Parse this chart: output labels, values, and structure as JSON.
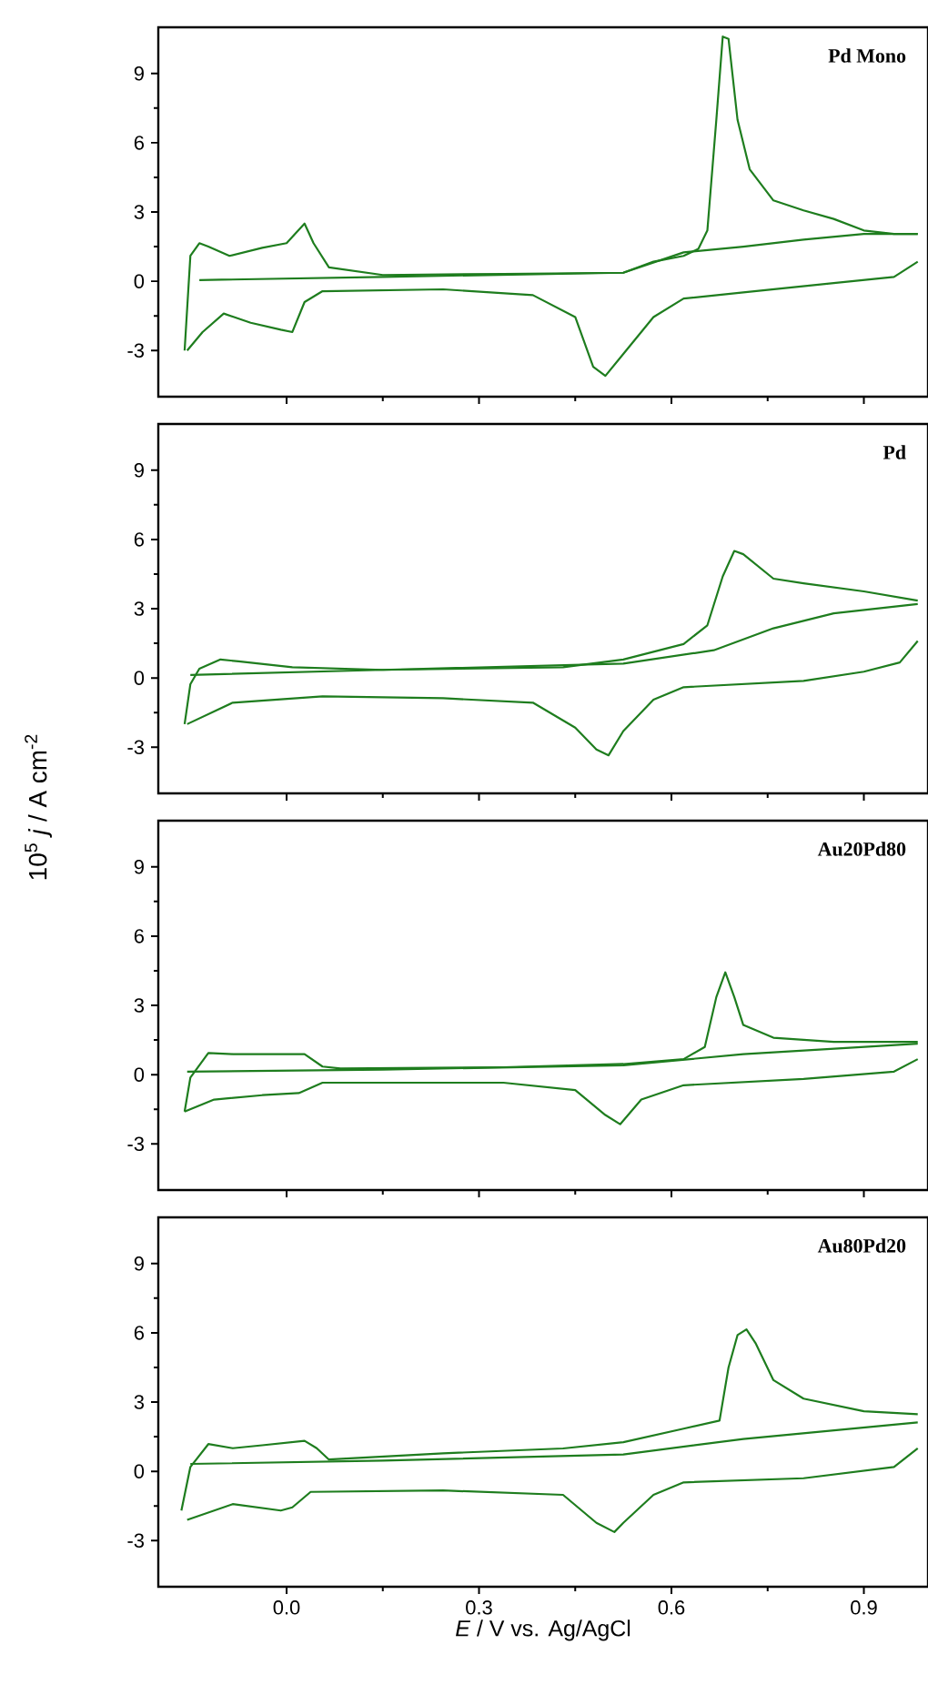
{
  "chart_data": [
    {
      "type": "line",
      "title": "Pd Mono",
      "xlim": [
        -0.2,
        1.0
      ],
      "ylim": [
        -5,
        11
      ],
      "xticks": [
        {
          "value": 0,
          "label": null
        },
        {
          "value": 0.3,
          "label": null
        },
        {
          "value": 0.6,
          "label": null
        },
        {
          "value": 0.9,
          "label": null
        }
      ],
      "yticks": [
        -3,
        0,
        3,
        6,
        9
      ],
      "tick_labels": "y",
      "series": [
        {
          "color": "#1e7d1e",
          "x": [
            -0.159,
            -0.15,
            -0.136,
            -0.122,
            -0.089,
            -0.038,
            0,
            0.028,
            0.042,
            0.066,
            0.15,
            0.338,
            0.525,
            0.572,
            0.619,
            0.642,
            0.656,
            0.67,
            0.68,
            0.689,
            0.703,
            0.722,
            0.759,
            0.806,
            0.853,
            0.9,
            0.947,
            0.984
          ],
          "values": [
            -3.0,
            1.1,
            1.65,
            1.5,
            1.1,
            1.45,
            1.65,
            2.5,
            1.65,
            0.6,
            0.27,
            0.32,
            0.37,
            0.85,
            1.1,
            1.4,
            2.2,
            7.0,
            10.6,
            10.5,
            7.0,
            4.85,
            3.5,
            3.07,
            2.7,
            2.2,
            2.05,
            2.05
          ]
        },
        {
          "color": "#1e7d1e",
          "x": [
            -0.136,
            0.15,
            0.525,
            0.619,
            0.712,
            0.806,
            0.9,
            0.984
          ],
          "values": [
            0.05,
            0.19,
            0.37,
            1.25,
            1.5,
            1.8,
            2.05,
            2.05
          ]
        },
        {
          "color": "#1e7d1e",
          "x": [
            0.984,
            0.947,
            0.853,
            0.712,
            0.619,
            0.572,
            0.525,
            0.497,
            0.478,
            0.45,
            0.384,
            0.244,
            0.056,
            0.028,
            0.009,
            -0.009,
            -0.056,
            -0.098,
            -0.131,
            -0.155
          ],
          "values": [
            0.85,
            0.19,
            -0.08,
            -0.48,
            -0.75,
            -1.55,
            -3.15,
            -4.1,
            -3.7,
            -1.55,
            -0.6,
            -0.35,
            -0.43,
            -0.9,
            -2.2,
            -2.1,
            -1.8,
            -1.4,
            -2.2,
            -3.0
          ]
        }
      ]
    },
    {
      "type": "line",
      "title": "Pd",
      "ylabel": "10$^{5}$ *j* / A cm$^{-2}$",
      "xlim": [
        -0.2,
        1.0
      ],
      "ylim": [
        -5,
        11
      ],
      "xticks": [
        {
          "value": 0,
          "label": null
        },
        {
          "value": 0.3,
          "label": null
        },
        {
          "value": 0.6,
          "label": null
        },
        {
          "value": 0.9,
          "label": null
        }
      ],
      "yticks": [
        -3,
        0,
        3,
        6,
        9
      ],
      "tick_labels": "y",
      "series": [
        {
          "color": "#1e7d1e",
          "x": [
            -0.159,
            -0.15,
            -0.136,
            -0.103,
            -0.075,
            0.009,
            0.15,
            0.431,
            0.525,
            0.619,
            0.656,
            0.68,
            0.698,
            0.712,
            0.759,
            0.806,
            0.9,
            0.984
          ],
          "values": [
            -2.0,
            -0.27,
            0.4,
            0.8,
            0.72,
            0.46,
            0.35,
            0.46,
            0.8,
            1.47,
            2.28,
            4.4,
            5.5,
            5.36,
            4.3,
            4.1,
            3.75,
            3.35
          ]
        },
        {
          "color": "#1e7d1e",
          "x": [
            -0.15,
            0.15,
            0.525,
            0.666,
            0.759,
            0.853,
            0.984
          ],
          "values": [
            0.13,
            0.35,
            0.62,
            1.2,
            2.15,
            2.8,
            3.2
          ]
        },
        {
          "color": "#1e7d1e",
          "x": [
            0.984,
            0.956,
            0.9,
            0.806,
            0.619,
            0.572,
            0.525,
            0.502,
            0.483,
            0.45,
            0.384,
            0.244,
            0.056,
            -0.084,
            -0.155
          ],
          "values": [
            1.6,
            0.67,
            0.27,
            -0.13,
            -0.4,
            -0.94,
            -2.3,
            -3.35,
            -3.1,
            -2.15,
            -1.07,
            -0.88,
            -0.8,
            -1.07,
            -2.0
          ]
        }
      ]
    },
    {
      "type": "line",
      "title": "Au20Pd80",
      "xlim": [
        -0.2,
        1.0
      ],
      "ylim": [
        -5,
        11
      ],
      "xticks": [
        {
          "value": 0,
          "label": null
        },
        {
          "value": 0.3,
          "label": null
        },
        {
          "value": 0.6,
          "label": null
        },
        {
          "value": 0.9,
          "label": null
        }
      ],
      "yticks": [
        -3,
        0,
        3,
        6,
        9
      ],
      "tick_labels": "y",
      "series": [
        {
          "color": "#1e7d1e",
          "x": [
            -0.159,
            -0.15,
            -0.122,
            -0.084,
            0.028,
            0.056,
            0.084,
            0.338,
            0.525,
            0.619,
            0.652,
            0.67,
            0.684,
            0.698,
            0.712,
            0.759,
            0.853,
            0.984
          ],
          "values": [
            -1.6,
            -0.13,
            0.94,
            0.89,
            0.89,
            0.35,
            0.27,
            0.32,
            0.46,
            0.67,
            1.2,
            3.36,
            4.43,
            3.36,
            2.15,
            1.6,
            1.42,
            1.42
          ]
        },
        {
          "color": "#1e7d1e",
          "x": [
            -0.155,
            0.15,
            0.525,
            0.712,
            0.984
          ],
          "values": [
            0.13,
            0.22,
            0.4,
            0.89,
            1.34
          ]
        },
        {
          "color": "#1e7d1e",
          "x": [
            0.984,
            0.947,
            0.806,
            0.619,
            0.553,
            0.52,
            0.497,
            0.45,
            0.338,
            0.056,
            0.019,
            -0.038,
            -0.113,
            -0.159
          ],
          "values": [
            0.67,
            0.13,
            -0.19,
            -0.46,
            -1.08,
            -2.15,
            -1.75,
            -0.67,
            -0.35,
            -0.35,
            -0.8,
            -0.89,
            -1.08,
            -1.6
          ]
        }
      ]
    },
    {
      "type": "line",
      "title": "Au80Pd20",
      "xlabel": "*E* / V vs. Ag/AgCl",
      "xlim": [
        -0.2,
        1.0
      ],
      "ylim": [
        -5,
        11
      ],
      "xticks": [
        {
          "value": 0,
          "label": "0.0"
        },
        {
          "value": 0.3,
          "label": "0.3"
        },
        {
          "value": 0.6,
          "label": "0.6"
        },
        {
          "value": 0.9,
          "label": "0.9"
        }
      ],
      "yticks": [
        -3,
        0,
        3,
        6,
        9
      ],
      "series": [
        {
          "color": "#1e7d1e",
          "x": [
            -0.164,
            -0.15,
            -0.122,
            -0.084,
            -0.038,
            0.028,
            0.047,
            0.066,
            0.244,
            0.431,
            0.525,
            0.619,
            0.675,
            0.689,
            0.703,
            0.717,
            0.731,
            0.759,
            0.806,
            0.9,
            0.984
          ],
          "values": [
            -1.7,
            0.19,
            1.18,
            1.0,
            1.13,
            1.32,
            1.0,
            0.51,
            0.78,
            0.99,
            1.26,
            1.85,
            2.2,
            4.5,
            5.9,
            6.15,
            5.56,
            3.95,
            3.15,
            2.6,
            2.47
          ]
        },
        {
          "color": "#1e7d1e",
          "x": [
            -0.15,
            0.15,
            0.525,
            0.712,
            0.984
          ],
          "values": [
            0.32,
            0.46,
            0.73,
            1.4,
            2.12
          ]
        },
        {
          "color": "#1e7d1e",
          "x": [
            0.984,
            0.947,
            0.806,
            0.619,
            0.572,
            0.525,
            0.511,
            0.483,
            0.431,
            0.244,
            0.0375,
            0.009,
            -0.009,
            -0.084,
            -0.155
          ],
          "values": [
            1.0,
            0.19,
            -0.3,
            -0.48,
            -1.02,
            -2.23,
            -2.63,
            -2.23,
            -1.02,
            -0.83,
            -0.89,
            -1.56,
            -1.7,
            -1.42,
            -2.1
          ]
        }
      ]
    }
  ]
}
